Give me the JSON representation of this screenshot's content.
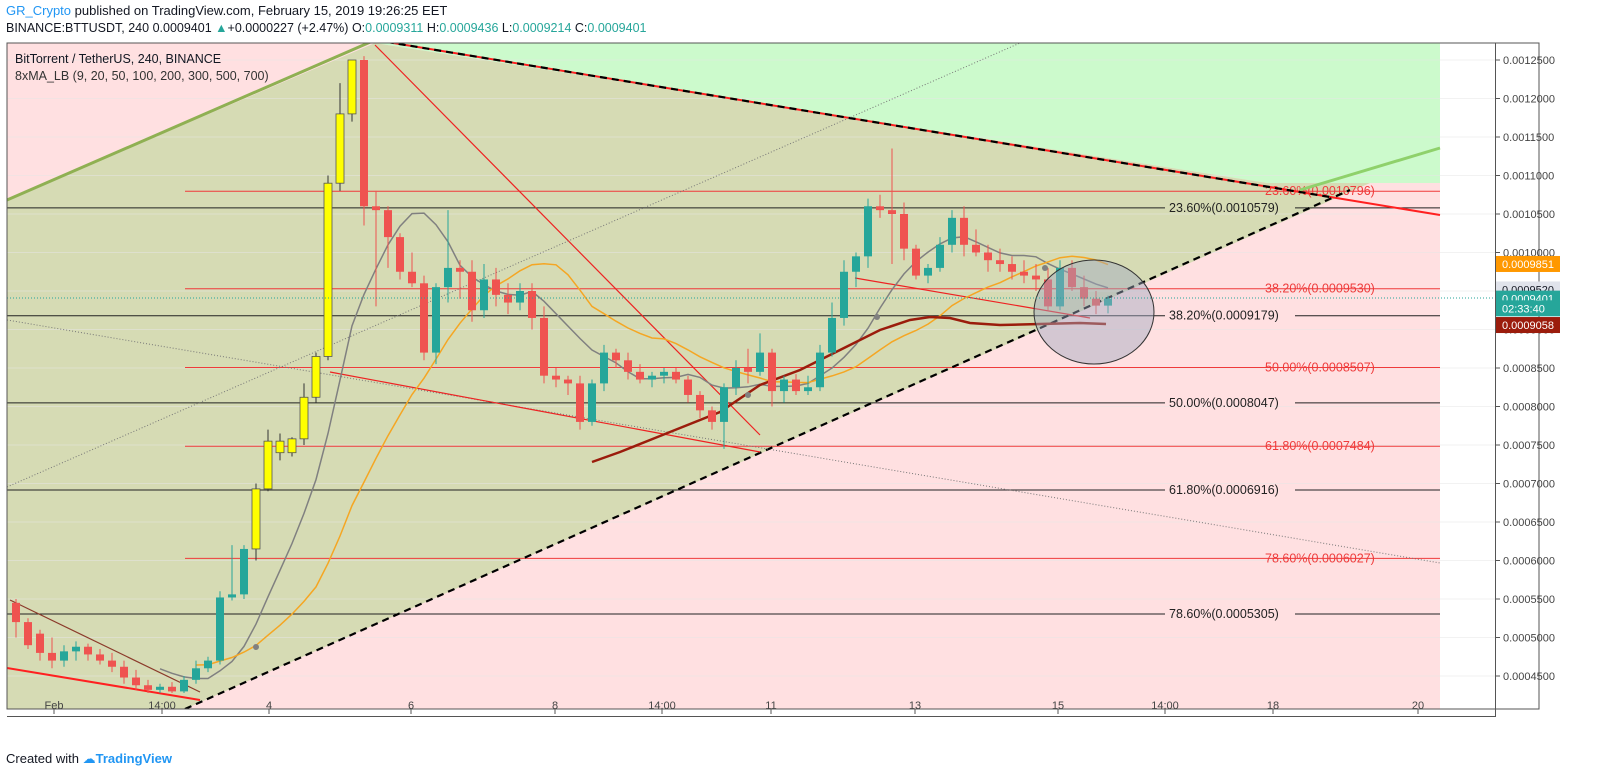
{
  "header": {
    "author": "GR_Crypto",
    "published": " published on TradingView.com, February 15, 2019 19:26:25 EET",
    "symbol": "BINANCE:BTTUSDT, 240",
    "last": "0.0009401",
    "change": "+0.0000227 (+2.47%)",
    "o_label": "O:",
    "o": "0.0009311",
    "h_label": "H:",
    "h": "0.0009436",
    "l_label": "L:",
    "l": "0.0009214",
    "c_label": "C:",
    "c": "0.0009401"
  },
  "legend": {
    "title": "BitTorrent / TetherUS, 240, BINANCE",
    "indicator": "8xMA_LB (9, 20, 50, 100, 200, 300, 500, 700)"
  },
  "footer": {
    "created": "Created with",
    "brand": "TradingView"
  },
  "colors": {
    "up": "#26a69a",
    "down": "#ef5350",
    "yellow": "#ffff00",
    "ma9": "#808080",
    "ma20": "#f5a623",
    "ma50": "#9b1c0c",
    "fib_red": "#ef3b3b",
    "fib_black": "#222222"
  },
  "chart_data": {
    "type": "candlestick",
    "title": "BitTorrent / TetherUS, 240, BINANCE",
    "ylim": [
      0.00043,
      0.00126
    ],
    "y_ticks": [
      "0.0012500",
      "0.0012000",
      "0.0011500",
      "0.0011000",
      "0.0010500",
      "0.0010000",
      "0.0009500",
      "0.0009000",
      "0.0008500",
      "0.0008000",
      "0.0007500",
      "0.0007000",
      "0.0006500",
      "0.0006000",
      "0.0005500",
      "0.0005000",
      "0.0004500"
    ],
    "x_ticks": [
      "Feb",
      "14:00",
      "4",
      "6",
      "8",
      "14:00",
      "11",
      "13",
      "15",
      "14:00",
      "18",
      "20"
    ],
    "candles": [
      {
        "o": 0.000545,
        "h": 0.00055,
        "l": 0.0005,
        "c": 0.00052
      },
      {
        "o": 0.00052,
        "h": 0.000525,
        "l": 0.000485,
        "c": 0.00049
      },
      {
        "o": 0.000505,
        "h": 0.00051,
        "l": 0.00047,
        "c": 0.00048
      },
      {
        "o": 0.00048,
        "h": 0.0005,
        "l": 0.00046,
        "c": 0.00047
      },
      {
        "o": 0.00047,
        "h": 0.00049,
        "l": 0.000462,
        "c": 0.000482
      },
      {
        "o": 0.000482,
        "h": 0.000495,
        "l": 0.00047,
        "c": 0.000488
      },
      {
        "o": 0.000488,
        "h": 0.000492,
        "l": 0.00047,
        "c": 0.000478
      },
      {
        "o": 0.000478,
        "h": 0.000485,
        "l": 0.000465,
        "c": 0.00047
      },
      {
        "o": 0.00047,
        "h": 0.00048,
        "l": 0.000455,
        "c": 0.000462
      },
      {
        "o": 0.000462,
        "h": 0.00047,
        "l": 0.00044,
        "c": 0.000448
      },
      {
        "o": 0.000448,
        "h": 0.000458,
        "l": 0.000432,
        "c": 0.000438
      },
      {
        "o": 0.000438,
        "h": 0.000445,
        "l": 0.000428,
        "c": 0.000432
      },
      {
        "o": 0.000432,
        "h": 0.00044,
        "l": 0.000428,
        "c": 0.000436
      },
      {
        "o": 0.000436,
        "h": 0.000442,
        "l": 0.000428,
        "c": 0.00043
      },
      {
        "o": 0.00043,
        "h": 0.00045,
        "l": 0.000428,
        "c": 0.000445
      },
      {
        "o": 0.000445,
        "h": 0.00047,
        "l": 0.00044,
        "c": 0.00046
      },
      {
        "o": 0.00046,
        "h": 0.000475,
        "l": 0.000455,
        "c": 0.00047
      },
      {
        "o": 0.00047,
        "h": 0.00056,
        "l": 0.000465,
        "c": 0.000552
      },
      {
        "o": 0.000552,
        "h": 0.00062,
        "l": 0.000548,
        "c": 0.000556
      },
      {
        "o": 0.000556,
        "h": 0.00062,
        "l": 0.00055,
        "c": 0.000615
      },
      {
        "o": 0.000615,
        "h": 0.0007,
        "l": 0.0006,
        "c": 0.000693
      },
      {
        "o": 0.000693,
        "h": 0.00077,
        "l": 0.00069,
        "c": 0.000755
      },
      {
        "o": 0.000755,
        "h": 0.000765,
        "l": 0.00073,
        "c": 0.00074
      },
      {
        "o": 0.00074,
        "h": 0.00076,
        "l": 0.000735,
        "c": 0.000758
      },
      {
        "o": 0.000758,
        "h": 0.00083,
        "l": 0.00075,
        "c": 0.000812
      },
      {
        "o": 0.000812,
        "h": 0.00087,
        "l": 0.000805,
        "c": 0.000865
      },
      {
        "o": 0.000865,
        "h": 0.0011,
        "l": 0.00086,
        "c": 0.00109
      },
      {
        "o": 0.00109,
        "h": 0.00122,
        "l": 0.00108,
        "c": 0.00118
      },
      {
        "o": 0.00118,
        "h": 0.00125,
        "l": 0.00117,
        "c": 0.00125
      },
      {
        "o": 0.00125,
        "h": 0.001255,
        "l": 0.001035,
        "c": 0.00106
      },
      {
        "o": 0.00106,
        "h": 0.00108,
        "l": 0.00093,
        "c": 0.001055
      },
      {
        "o": 0.001055,
        "h": 0.00106,
        "l": 0.00098,
        "c": 0.00102
      },
      {
        "o": 0.00102,
        "h": 0.001025,
        "l": 0.000965,
        "c": 0.000975
      },
      {
        "o": 0.000975,
        "h": 0.001,
        "l": 0.000955,
        "c": 0.00096
      },
      {
        "o": 0.00096,
        "h": 0.00097,
        "l": 0.00086,
        "c": 0.00087
      },
      {
        "o": 0.00087,
        "h": 0.00096,
        "l": 0.000855,
        "c": 0.000955
      },
      {
        "o": 0.000955,
        "h": 0.001055,
        "l": 0.000935,
        "c": 0.00098
      },
      {
        "o": 0.00098,
        "h": 0.00099,
        "l": 0.00094,
        "c": 0.000975
      },
      {
        "o": 0.000975,
        "h": 0.00099,
        "l": 0.00091,
        "c": 0.000925
      },
      {
        "o": 0.000925,
        "h": 0.000985,
        "l": 0.000915,
        "c": 0.000965
      },
      {
        "o": 0.000965,
        "h": 0.00098,
        "l": 0.00093,
        "c": 0.000945
      },
      {
        "o": 0.000945,
        "h": 0.00096,
        "l": 0.00092,
        "c": 0.000935
      },
      {
        "o": 0.000935,
        "h": 0.00096,
        "l": 0.000925,
        "c": 0.00095
      },
      {
        "o": 0.00095,
        "h": 0.00096,
        "l": 0.0009,
        "c": 0.000915
      },
      {
        "o": 0.000915,
        "h": 0.00093,
        "l": 0.00083,
        "c": 0.00084
      },
      {
        "o": 0.00084,
        "h": 0.00085,
        "l": 0.000825,
        "c": 0.000835
      },
      {
        "o": 0.000835,
        "h": 0.00084,
        "l": 0.000815,
        "c": 0.00083
      },
      {
        "o": 0.00083,
        "h": 0.00084,
        "l": 0.00077,
        "c": 0.00078
      },
      {
        "o": 0.00078,
        "h": 0.000835,
        "l": 0.000775,
        "c": 0.00083
      },
      {
        "o": 0.00083,
        "h": 0.00088,
        "l": 0.00082,
        "c": 0.00087
      },
      {
        "o": 0.00087,
        "h": 0.000875,
        "l": 0.00085,
        "c": 0.00086
      },
      {
        "o": 0.00086,
        "h": 0.00087,
        "l": 0.000835,
        "c": 0.000845
      },
      {
        "o": 0.000845,
        "h": 0.000855,
        "l": 0.00083,
        "c": 0.000835
      },
      {
        "o": 0.000835,
        "h": 0.000845,
        "l": 0.000825,
        "c": 0.00084
      },
      {
        "o": 0.00084,
        "h": 0.00085,
        "l": 0.00083,
        "c": 0.000845
      },
      {
        "o": 0.000845,
        "h": 0.00085,
        "l": 0.00083,
        "c": 0.000835
      },
      {
        "o": 0.000835,
        "h": 0.00084,
        "l": 0.000805,
        "c": 0.000815
      },
      {
        "o": 0.000815,
        "h": 0.00082,
        "l": 0.000785,
        "c": 0.000795
      },
      {
        "o": 0.000795,
        "h": 0.0008,
        "l": 0.00077,
        "c": 0.00078
      },
      {
        "o": 0.00078,
        "h": 0.00083,
        "l": 0.000745,
        "c": 0.000825
      },
      {
        "o": 0.000825,
        "h": 0.00086,
        "l": 0.000815,
        "c": 0.00085
      },
      {
        "o": 0.00085,
        "h": 0.000875,
        "l": 0.00083,
        "c": 0.000845
      },
      {
        "o": 0.000845,
        "h": 0.000895,
        "l": 0.00084,
        "c": 0.00087
      },
      {
        "o": 0.00087,
        "h": 0.000875,
        "l": 0.0008,
        "c": 0.00082
      },
      {
        "o": 0.00082,
        "h": 0.00084,
        "l": 0.000805,
        "c": 0.000835
      },
      {
        "o": 0.000835,
        "h": 0.000842,
        "l": 0.000815,
        "c": 0.00082
      },
      {
        "o": 0.00082,
        "h": 0.00084,
        "l": 0.000815,
        "c": 0.000825
      },
      {
        "o": 0.000825,
        "h": 0.00088,
        "l": 0.00082,
        "c": 0.00087
      },
      {
        "o": 0.00087,
        "h": 0.000935,
        "l": 0.000865,
        "c": 0.000915
      },
      {
        "o": 0.000915,
        "h": 0.00099,
        "l": 0.000905,
        "c": 0.000975
      },
      {
        "o": 0.000975,
        "h": 0.001,
        "l": 0.000955,
        "c": 0.000995
      },
      {
        "o": 0.000995,
        "h": 0.00107,
        "l": 0.00098,
        "c": 0.00106
      },
      {
        "o": 0.00106,
        "h": 0.001075,
        "l": 0.001045,
        "c": 0.001055
      },
      {
        "o": 0.001055,
        "h": 0.001135,
        "l": 0.000985,
        "c": 0.00105
      },
      {
        "o": 0.00105,
        "h": 0.001065,
        "l": 0.00099,
        "c": 0.001005
      },
      {
        "o": 0.001005,
        "h": 0.00101,
        "l": 0.000965,
        "c": 0.00097
      },
      {
        "o": 0.00097,
        "h": 0.000985,
        "l": 0.00096,
        "c": 0.00098
      },
      {
        "o": 0.00098,
        "h": 0.00102,
        "l": 0.000975,
        "c": 0.00101
      },
      {
        "o": 0.00101,
        "h": 0.001055,
        "l": 0.001,
        "c": 0.001045
      },
      {
        "o": 0.001045,
        "h": 0.00106,
        "l": 0.000995,
        "c": 0.00101
      },
      {
        "o": 0.00101,
        "h": 0.00103,
        "l": 0.000995,
        "c": 0.001
      },
      {
        "o": 0.001,
        "h": 0.00101,
        "l": 0.000975,
        "c": 0.00099
      },
      {
        "o": 0.00099,
        "h": 0.001005,
        "l": 0.000975,
        "c": 0.000985
      },
      {
        "o": 0.000985,
        "h": 0.000995,
        "l": 0.000965,
        "c": 0.000975
      },
      {
        "o": 0.000975,
        "h": 0.00099,
        "l": 0.00096,
        "c": 0.00097
      },
      {
        "o": 0.00097,
        "h": 0.000985,
        "l": 0.00095,
        "c": 0.000965
      },
      {
        "o": 0.000965,
        "h": 0.00098,
        "l": 0.000925,
        "c": 0.00093
      },
      {
        "o": 0.00093,
        "h": 0.00099,
        "l": 0.000925,
        "c": 0.00098
      },
      {
        "o": 0.00098,
        "h": 0.00099,
        "l": 0.00095,
        "c": 0.000955
      },
      {
        "o": 0.000955,
        "h": 0.00097,
        "l": 0.00093,
        "c": 0.00094
      },
      {
        "o": 0.00094,
        "h": 0.00095,
        "l": 0.00092,
        "c": 0.000931
      },
      {
        "o": 0.000931,
        "h": 0.000944,
        "l": 0.000921,
        "c": 0.00094
      }
    ],
    "fib_red": [
      {
        "label": "23.60%(0.0010796)",
        "value": 0.0010796
      },
      {
        "label": "38.20%(0.0009530)",
        "value": 0.000953
      },
      {
        "label": "50.00%(0.0008507)",
        "value": 0.0008507
      },
      {
        "label": "61.80%(0.0007484)",
        "value": 0.0007484
      },
      {
        "label": "78.60%(0.0006027)",
        "value": 0.0006027
      }
    ],
    "fib_black": [
      {
        "label": "23.60%(0.0010579)",
        "value": 0.0010579
      },
      {
        "label": "38.20%(0.0009179)",
        "value": 0.0009179
      },
      {
        "label": "50.00%(0.0008047)",
        "value": 0.0008047
      },
      {
        "label": "61.80%(0.0006916)",
        "value": 0.0006916
      },
      {
        "label": "78.60%(0.0005305)",
        "value": 0.0005305
      }
    ],
    "price_tags": [
      {
        "text": "0.0009851",
        "bg": "#ff9800",
        "fg": "#ffffff",
        "value": 0.0009851
      },
      {
        "text": "0.0009520",
        "bg": "#e0e3eb",
        "fg": "#131722",
        "value": 0.000952
      },
      {
        "text": "0.0009401",
        "bg": "#26a69a",
        "fg": "#ffffff",
        "value": 0.0009401
      },
      {
        "text": "02:33:40",
        "bg": "#26a69a",
        "fg": "#ffffff",
        "value": 0.0009275
      },
      {
        "text": "0.0009058",
        "bg": "#9b1c0c",
        "fg": "#ffffff",
        "value": 0.0009058
      }
    ]
  }
}
